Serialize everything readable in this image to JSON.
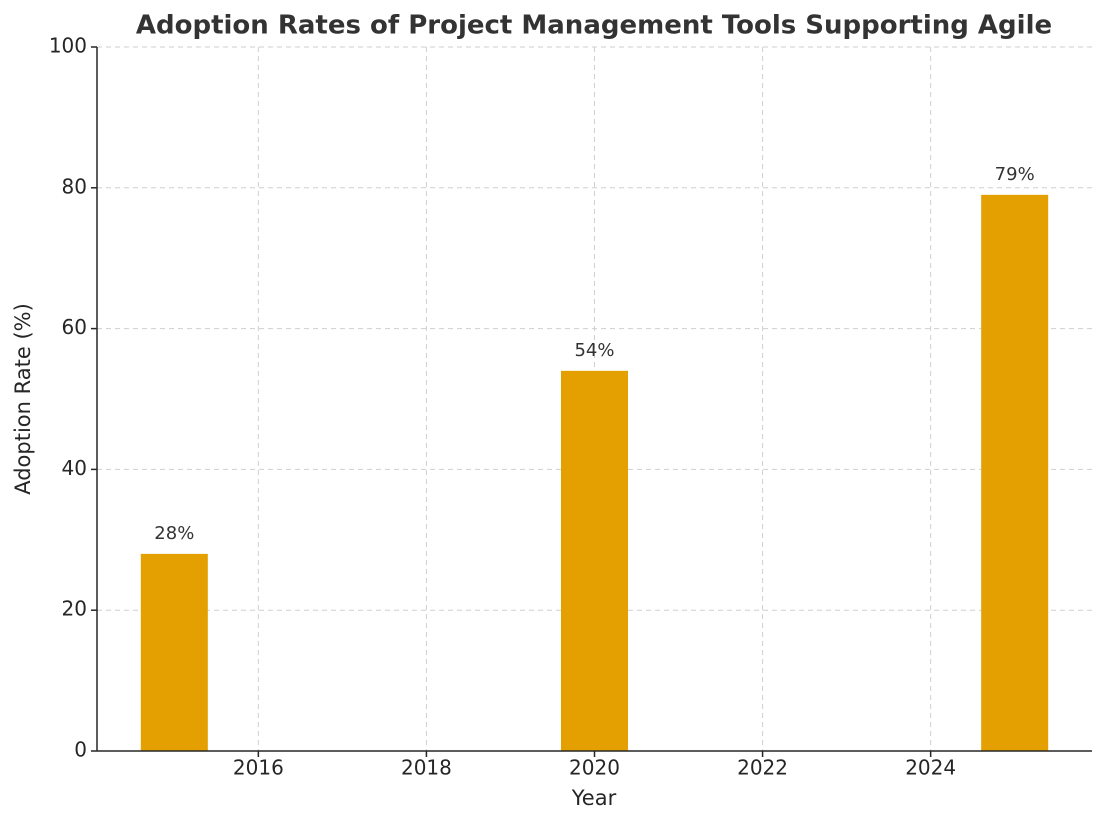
{
  "chart_data": {
    "type": "bar",
    "title": "Adoption Rates of Project Management Tools Supporting Agile",
    "x_label": "Year",
    "y_label": "Adoption Rate (%)",
    "x": [
      2015,
      2020,
      2025
    ],
    "values": [
      28,
      54,
      79
    ],
    "value_labels": [
      "28%",
      "54%",
      "79%"
    ],
    "color": "#e49f00",
    "xlim": [
      2014.08,
      2025.92
    ],
    "xticks": [
      2016,
      2018,
      2020,
      2022,
      2024
    ],
    "ylim": [
      0,
      100
    ],
    "yticks": [
      0,
      20,
      40,
      60,
      80,
      100
    ],
    "grid": true
  }
}
